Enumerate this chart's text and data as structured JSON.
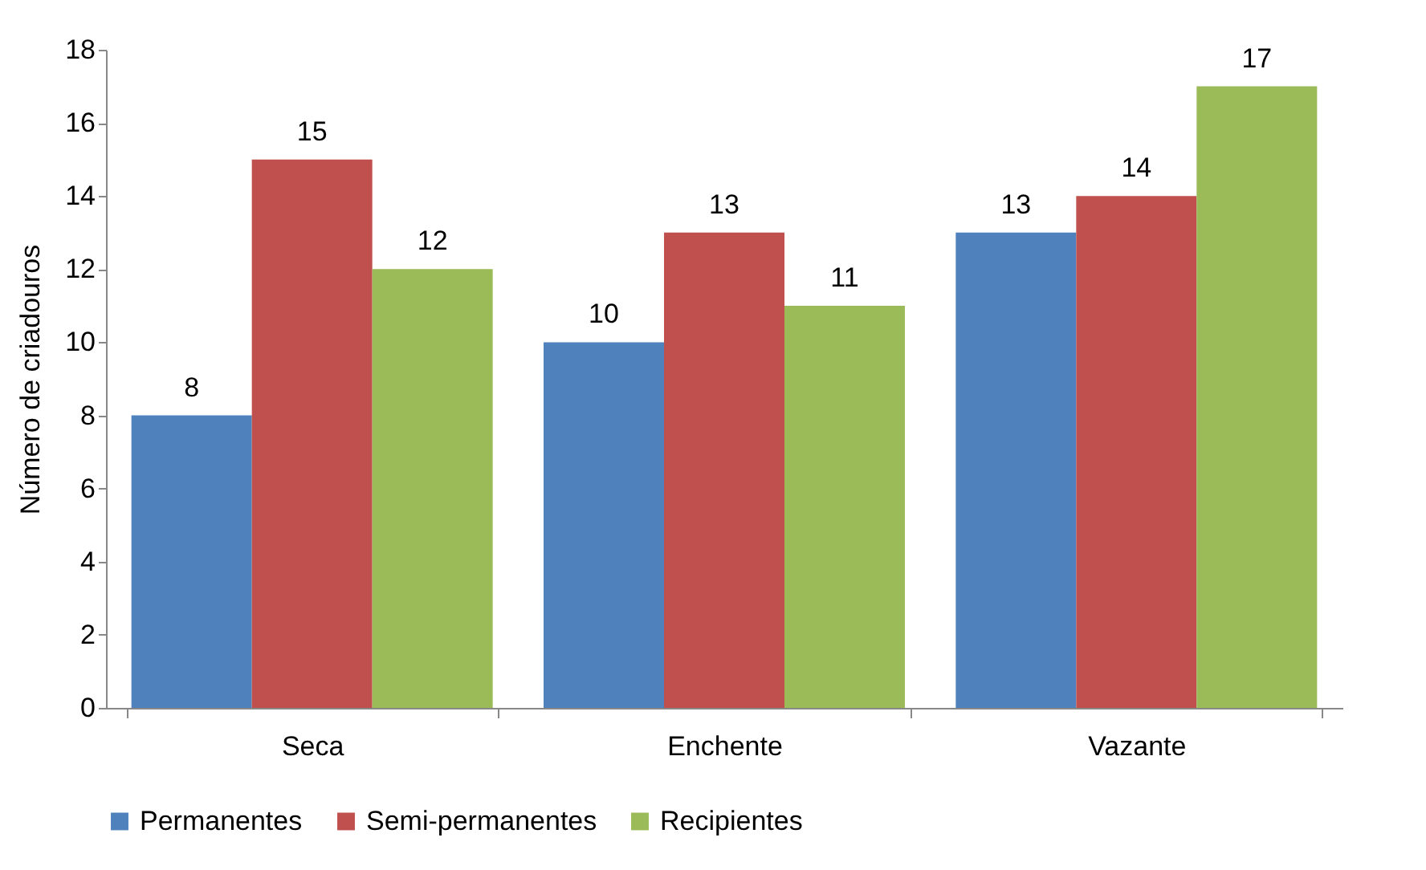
{
  "chart_data": {
    "type": "bar",
    "ylabel": "Número de criadouros",
    "categories": [
      "Seca",
      "Enchente",
      "Vazante"
    ],
    "series": [
      {
        "name": "Permanentes",
        "color": "#4f81bd",
        "values": [
          8,
          10,
          13
        ]
      },
      {
        "name": "Semi-permanentes",
        "color": "#c0504d",
        "values": [
          15,
          13,
          14
        ]
      },
      {
        "name": "Recipientes",
        "color": "#9bbb59",
        "values": [
          12,
          11,
          17
        ]
      }
    ],
    "ylim": [
      0,
      18
    ],
    "yticks": [
      0,
      2,
      4,
      6,
      8,
      10,
      12,
      14,
      16,
      18
    ],
    "data_labels": true,
    "grid": false,
    "legend": "bottom"
  }
}
